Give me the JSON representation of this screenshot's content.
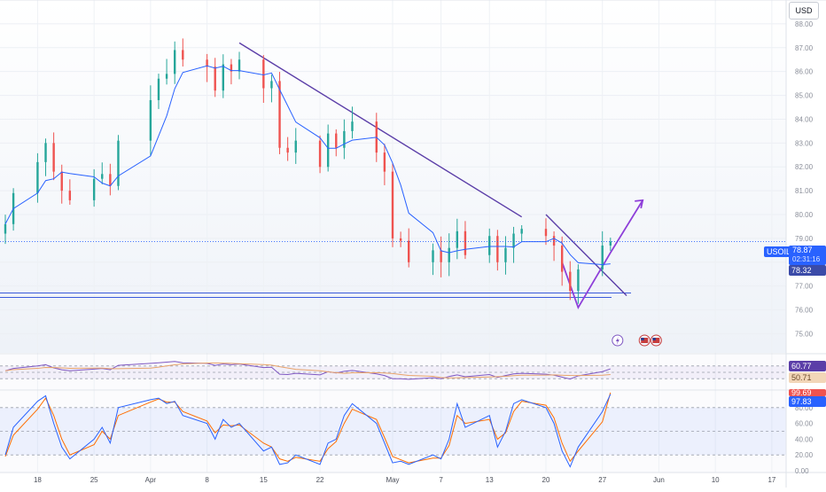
{
  "currency": "USD",
  "symbol": "USOIL",
  "last_price": "78.87",
  "countdown": "02:31:16",
  "ma_price": "78.32",
  "rsi_values": [
    "60.77",
    "50.71"
  ],
  "stoch_values": [
    "99.69",
    "97.83"
  ],
  "colors": {
    "up": "#26a69a",
    "down": "#ef5350",
    "ma": "#2962ff",
    "trendline": "#5b3ea8",
    "arrow": "#8e3fd9",
    "rsi": "#7e57c2",
    "k_line": "#2962ff",
    "d_line": "#ff6d00",
    "support": "#3b5bdb"
  },
  "icons": [
    "lightning-icon",
    "us-flag-icon",
    "us-flag-icon"
  ],
  "chart_data": [
    {
      "type": "candlestick",
      "title": "USOIL",
      "y_ticks": [
        "75.00",
        "76.00",
        "77.00",
        "78.00",
        "79.00",
        "80.00",
        "81.00",
        "82.00",
        "83.00",
        "84.00",
        "85.00",
        "86.00",
        "87.00",
        "88.00"
      ],
      "x_ticks": [
        "18",
        "25",
        "Apr",
        "8",
        "15",
        "22",
        "May",
        "7",
        "13",
        "20",
        "27",
        "Jun",
        "10",
        "17"
      ],
      "ylim": [
        74.2,
        89.0
      ],
      "x_range": [
        "2024-03-14",
        "2024-06-18"
      ],
      "moving_average_last": 78.32,
      "annotations": [
        "descending trendline",
        "support line near 76.6",
        "breakout arrow"
      ],
      "closes": [
        {
          "d": "2024-03-14",
          "c": 79.6
        },
        {
          "d": "2024-03-15",
          "c": 80.9
        },
        {
          "d": "2024-03-18",
          "c": 82.2
        },
        {
          "d": "2024-03-19",
          "c": 83.0
        },
        {
          "d": "2024-03-20",
          "c": 81.8
        },
        {
          "d": "2024-03-21",
          "c": 81.0
        },
        {
          "d": "2024-03-22",
          "c": 80.6
        },
        {
          "d": "2024-03-25",
          "c": 81.5
        },
        {
          "d": "2024-03-26",
          "c": 81.7
        },
        {
          "d": "2024-03-27",
          "c": 81.2
        },
        {
          "d": "2024-03-28",
          "c": 83.1
        },
        {
          "d": "2024-04-01",
          "c": 84.8
        },
        {
          "d": "2024-04-02",
          "c": 85.7
        },
        {
          "d": "2024-04-03",
          "c": 85.9
        },
        {
          "d": "2024-04-04",
          "c": 86.9
        },
        {
          "d": "2024-04-05",
          "c": 86.5
        },
        {
          "d": "2024-04-08",
          "c": 86.2
        },
        {
          "d": "2024-04-09",
          "c": 85.2
        },
        {
          "d": "2024-04-10",
          "c": 86.3
        },
        {
          "d": "2024-04-11",
          "c": 86.0
        },
        {
          "d": "2024-04-12",
          "c": 86.5
        },
        {
          "d": "2024-04-15",
          "c": 85.3
        },
        {
          "d": "2024-04-16",
          "c": 85.6
        },
        {
          "d": "2024-04-17",
          "c": 82.8
        },
        {
          "d": "2024-04-18",
          "c": 82.6
        },
        {
          "d": "2024-04-19",
          "c": 83.1
        },
        {
          "d": "2024-04-22",
          "c": 82.0
        },
        {
          "d": "2024-04-23",
          "c": 83.4
        },
        {
          "d": "2024-04-24",
          "c": 82.8
        },
        {
          "d": "2024-04-25",
          "c": 83.5
        },
        {
          "d": "2024-04-26",
          "c": 83.9
        },
        {
          "d": "2024-04-29",
          "c": 82.6
        },
        {
          "d": "2024-04-30",
          "c": 81.8
        },
        {
          "d": "2024-05-01",
          "c": 79.0
        },
        {
          "d": "2024-05-02",
          "c": 78.9
        },
        {
          "d": "2024-05-03",
          "c": 78.0
        },
        {
          "d": "2024-05-06",
          "c": 78.5
        },
        {
          "d": "2024-05-07",
          "c": 78.0
        },
        {
          "d": "2024-05-08",
          "c": 78.6
        },
        {
          "d": "2024-05-09",
          "c": 79.3
        },
        {
          "d": "2024-05-10",
          "c": 78.3
        },
        {
          "d": "2024-05-13",
          "c": 79.1
        },
        {
          "d": "2024-05-14",
          "c": 78.0
        },
        {
          "d": "2024-05-15",
          "c": 78.6
        },
        {
          "d": "2024-05-16",
          "c": 79.2
        },
        {
          "d": "2024-05-17",
          "c": 79.4
        },
        {
          "d": "2024-05-20",
          "c": 79.1
        },
        {
          "d": "2024-05-21",
          "c": 78.7
        },
        {
          "d": "2024-05-22",
          "c": 77.6
        },
        {
          "d": "2024-05-23",
          "c": 76.8
        },
        {
          "d": "2024-05-24",
          "c": 77.7
        },
        {
          "d": "2024-05-27",
          "c": 78.7
        },
        {
          "d": "2024-05-28",
          "c": 78.87
        }
      ]
    },
    {
      "type": "line",
      "title": "RSI",
      "levels": [
        70,
        50,
        30
      ],
      "series": [
        {
          "values": [
            55,
            62,
            70,
            74,
            64,
            58,
            55,
            60,
            62,
            58,
            72,
            78,
            80,
            82,
            84,
            80,
            78,
            72,
            76,
            74,
            76,
            65,
            66,
            44,
            43,
            47,
            42,
            52,
            48,
            53,
            56,
            45,
            40,
            30,
            30,
            28,
            33,
            30,
            37,
            42,
            36,
            43,
            34,
            40,
            45,
            47,
            44,
            41,
            35,
            29,
            39,
            52,
            61
          ]
        }
      ]
    },
    {
      "type": "line",
      "title": "Stochastic",
      "y_ticks": [
        "80.00",
        "60.00",
        "40.00",
        "20.00",
        "0.00"
      ],
      "levels": [
        80,
        50,
        20
      ],
      "series": [
        {
          "values": [
            20,
            55,
            88,
            95,
            60,
            30,
            15,
            40,
            55,
            35,
            80,
            90,
            92,
            85,
            88,
            70,
            60,
            40,
            65,
            55,
            60,
            25,
            30,
            8,
            10,
            20,
            8,
            35,
            40,
            70,
            85,
            60,
            35,
            10,
            12,
            8,
            20,
            15,
            40,
            85,
            55,
            70,
            30,
            50,
            85,
            90,
            80,
            60,
            25,
            5,
            30,
            75,
            97
          ]
        },
        {
          "values": [
            18,
            45,
            78,
            92,
            70,
            40,
            20,
            33,
            50,
            40,
            70,
            87,
            91,
            87,
            87,
            75,
            63,
            48,
            58,
            57,
            58,
            35,
            30,
            15,
            12,
            17,
            12,
            28,
            37,
            60,
            78,
            65,
            42,
            18,
            14,
            10,
            16,
            16,
            32,
            70,
            60,
            65,
            40,
            48,
            75,
            88,
            83,
            67,
            35,
            12,
            25,
            62,
            99
          ]
        }
      ]
    }
  ]
}
